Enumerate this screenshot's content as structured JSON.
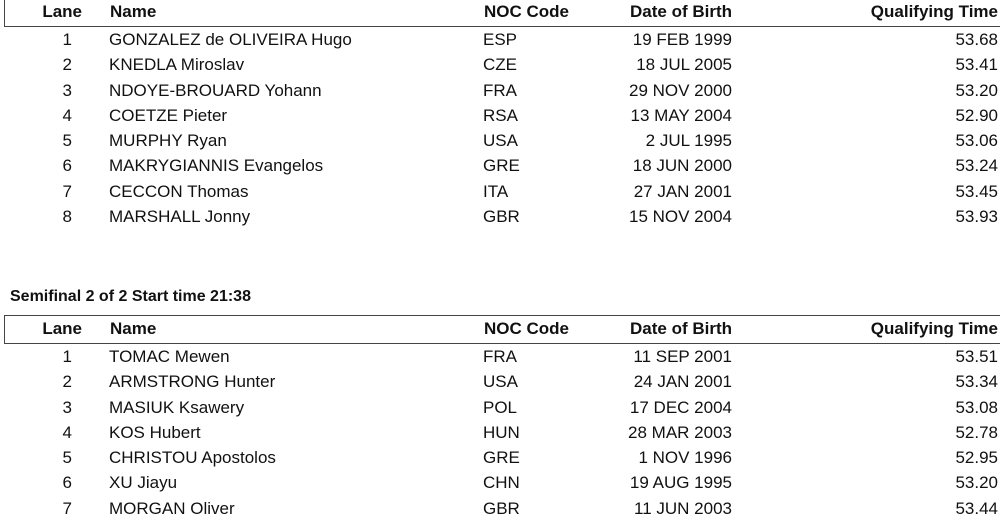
{
  "columns": {
    "lane": "Lane",
    "name": "Name",
    "noc": "NOC Code",
    "dob": "Date of Birth",
    "qt": "Qualifying Time"
  },
  "semifinal1": {
    "rows": [
      {
        "lane": "1",
        "name": "GONZALEZ de OLIVEIRA Hugo",
        "noc": "ESP",
        "dob": "19 FEB 1999",
        "qt": "53.68"
      },
      {
        "lane": "2",
        "name": "KNEDLA Miroslav",
        "noc": "CZE",
        "dob": "18 JUL 2005",
        "qt": "53.41"
      },
      {
        "lane": "3",
        "name": "NDOYE-BROUARD Yohann",
        "noc": "FRA",
        "dob": "29 NOV 2000",
        "qt": "53.20"
      },
      {
        "lane": "4",
        "name": "COETZE Pieter",
        "noc": "RSA",
        "dob": "13 MAY 2004",
        "qt": "52.90"
      },
      {
        "lane": "5",
        "name": "MURPHY Ryan",
        "noc": "USA",
        "dob": "2 JUL 1995",
        "qt": "53.06"
      },
      {
        "lane": "6",
        "name": "MAKRYGIANNIS Evangelos",
        "noc": "GRE",
        "dob": "18 JUN 2000",
        "qt": "53.24"
      },
      {
        "lane": "7",
        "name": "CECCON Thomas",
        "noc": "ITA",
        "dob": "27 JAN 2001",
        "qt": "53.45"
      },
      {
        "lane": "8",
        "name": "MARSHALL Jonny",
        "noc": "GBR",
        "dob": "15 NOV 2004",
        "qt": "53.93"
      }
    ]
  },
  "semifinal2": {
    "title": "Semifinal 2 of 2 Start time 21:38",
    "rows": [
      {
        "lane": "1",
        "name": "TOMAC Mewen",
        "noc": "FRA",
        "dob": "11 SEP 2001",
        "qt": "53.51"
      },
      {
        "lane": "2",
        "name": "ARMSTRONG Hunter",
        "noc": "USA",
        "dob": "24 JAN 2001",
        "qt": "53.34"
      },
      {
        "lane": "3",
        "name": "MASIUK Ksawery",
        "noc": "POL",
        "dob": "17 DEC 2004",
        "qt": "53.08"
      },
      {
        "lane": "4",
        "name": "KOS Hubert",
        "noc": "HUN",
        "dob": "28 MAR 2003",
        "qt": "52.78"
      },
      {
        "lane": "5",
        "name": "CHRISTOU Apostolos",
        "noc": "GRE",
        "dob": "1 NOV 1996",
        "qt": "52.95"
      },
      {
        "lane": "6",
        "name": "XU Jiayu",
        "noc": "CHN",
        "dob": "19 AUG 1995",
        "qt": "53.20"
      },
      {
        "lane": "7",
        "name": "MORGAN Oliver",
        "noc": "GBR",
        "dob": "11 JUN 2003",
        "qt": "53.44"
      }
    ]
  }
}
